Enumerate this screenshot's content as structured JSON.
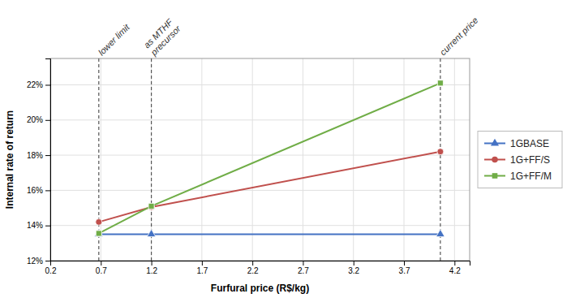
{
  "chart_data": {
    "type": "line",
    "xlabel": "Furfural price (R$/kg)",
    "ylabel": "Internal rate of return",
    "x": [
      0.68,
      1.2,
      4.06
    ],
    "series": [
      {
        "name": "1GBASE",
        "color": "#4472C4",
        "marker": "triangle",
        "line_style": "solid",
        "values": [
          13.5,
          13.5,
          13.5
        ]
      },
      {
        "name": "1G+FF/S",
        "color": "#C0504D",
        "marker": "circle",
        "line_style": "solid",
        "values": [
          14.2,
          15.05,
          18.2
        ]
      },
      {
        "name": "1G+FF/M",
        "color": "#70AD47",
        "marker": "square",
        "line_style": "solid",
        "values": [
          13.55,
          15.1,
          22.1
        ]
      }
    ],
    "annotations": [
      {
        "x": 0.68,
        "label": "lower limit"
      },
      {
        "x": 1.2,
        "label": "as MTHF\nprecursor"
      },
      {
        "x": 4.06,
        "label": "current price"
      }
    ],
    "xlim": [
      0.2,
      4.35
    ],
    "xticks": [
      0.2,
      0.7,
      1.2,
      1.7,
      2.2,
      2.7,
      3.2,
      3.7,
      4.2
    ],
    "ylim": [
      12,
      23.5
    ],
    "yticks": [
      {
        "value": 12,
        "label": "12%"
      },
      {
        "value": 14,
        "label": "14%"
      },
      {
        "value": 16,
        "label": "16%"
      },
      {
        "value": 18,
        "label": "18%"
      },
      {
        "value": 20,
        "label": "20%"
      },
      {
        "value": 22,
        "label": "22%"
      }
    ],
    "grid": true,
    "legend": "right"
  }
}
